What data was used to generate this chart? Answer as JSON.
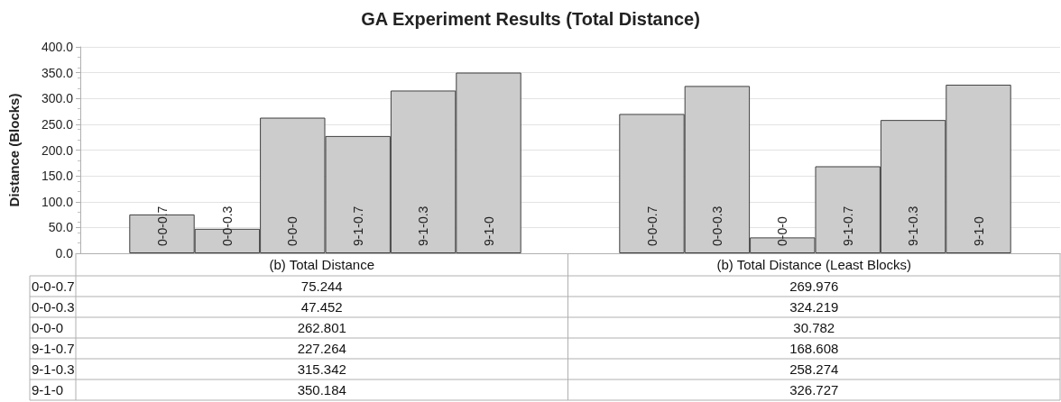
{
  "chart_data": {
    "type": "bar",
    "title": "GA Experiment Results (Total Distance)",
    "ylabel": "Distance (Blocks)",
    "categories": [
      "(b) Total Distance",
      "(b) Total Distance (Least Blocks)"
    ],
    "series": [
      {
        "name": "0-0-0.7",
        "color": "#cccccc",
        "values": [
          75.244,
          269.976
        ]
      },
      {
        "name": "0-0-0.3",
        "color": "#cccccc",
        "values": [
          47.452,
          324.219
        ]
      },
      {
        "name": "0-0-0",
        "color": "#cccccc",
        "values": [
          262.801,
          30.782
        ]
      },
      {
        "name": "9-1-0.7",
        "color": "#cccccc",
        "values": [
          227.264,
          168.608
        ]
      },
      {
        "name": "9-1-0.3",
        "color": "#cccccc",
        "values": [
          315.342,
          258.274
        ]
      },
      {
        "name": "9-1-0",
        "color": "#cccccc",
        "values": [
          350.184,
          326.727
        ]
      }
    ],
    "ylim": [
      0,
      400
    ],
    "yticks": [
      {
        "value": 0,
        "label": "0.0"
      },
      {
        "value": 50,
        "label": "50.0"
      },
      {
        "value": 100,
        "label": "100.0"
      },
      {
        "value": 150,
        "label": "150.0"
      },
      {
        "value": 200,
        "label": "200.0"
      },
      {
        "value": 250,
        "label": "250.0"
      },
      {
        "value": 300,
        "label": "300.0"
      },
      {
        "value": 350,
        "label": "350.0"
      },
      {
        "value": 400,
        "label": "400.0"
      }
    ],
    "grid": "y",
    "legend": false,
    "data_labels": true
  }
}
